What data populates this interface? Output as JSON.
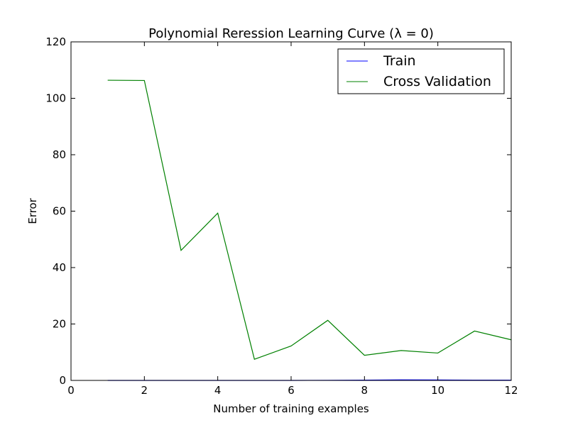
{
  "chart_data": {
    "type": "line",
    "title": "Polynomial Reression Learning Curve (λ = 0)",
    "xlabel": "Number of training examples",
    "ylabel": "Error",
    "xlim": [
      0,
      12
    ],
    "ylim": [
      0,
      120
    ],
    "xticks": [
      0,
      2,
      4,
      6,
      8,
      10,
      12
    ],
    "yticks": [
      0,
      20,
      40,
      60,
      80,
      100,
      120
    ],
    "grid": false,
    "legend_position": "top-right",
    "series": [
      {
        "name": "Train",
        "color": "#0000ff",
        "x": [
          1,
          2,
          3,
          4,
          5,
          6,
          7,
          8,
          9,
          10,
          11,
          12
        ],
        "y": [
          0.0,
          0.0,
          0.0,
          0.0,
          0.0,
          0.0,
          0.05,
          0.1,
          0.2,
          0.15,
          0.1,
          0.1
        ]
      },
      {
        "name": "Cross Validation",
        "color": "#008000",
        "x": [
          1,
          2,
          3,
          4,
          5,
          6,
          7,
          8,
          9,
          10,
          11,
          12
        ],
        "y": [
          106.4,
          106.3,
          46.1,
          59.3,
          7.5,
          12.2,
          21.3,
          8.9,
          10.6,
          9.7,
          17.5,
          14.4
        ]
      }
    ]
  }
}
